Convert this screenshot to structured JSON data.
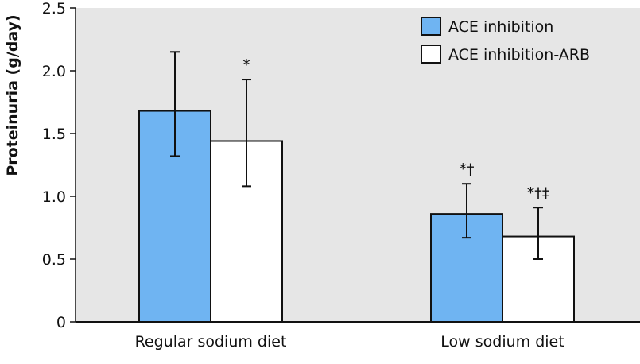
{
  "colors": {
    "plot_background": "#e6e6e6",
    "bar_ace": "#6fb4f2",
    "bar_ace_arb": "#ffffff",
    "stroke": "#111111"
  },
  "chart_data": {
    "type": "bar",
    "title": "",
    "xlabel": "",
    "ylabel": "Proteinuria (g/day)",
    "ylim": [
      0,
      2.5
    ],
    "yticks": [
      0,
      0.5,
      1.0,
      1.5,
      2.0,
      2.5
    ],
    "ytick_labels": [
      "0",
      "0.5",
      "1.0",
      "1.5",
      "2.0",
      "2.5"
    ],
    "categories": [
      "Regular sodium diet",
      "Low sodium diet"
    ],
    "grid": false,
    "legend_position": "top-right",
    "series": [
      {
        "name": "ACE inhibition",
        "color": "#6fb4f2",
        "values": [
          1.68,
          0.86
        ],
        "error_low": [
          1.32,
          0.67
        ],
        "error_high": [
          2.15,
          1.1
        ],
        "annotations": [
          "",
          "*†"
        ]
      },
      {
        "name": "ACE inhibition-ARB",
        "color": "#ffffff",
        "values": [
          1.44,
          0.68
        ],
        "error_low": [
          1.08,
          0.5
        ],
        "error_high": [
          1.93,
          0.91
        ],
        "annotations": [
          "*",
          "*†‡"
        ]
      }
    ]
  }
}
